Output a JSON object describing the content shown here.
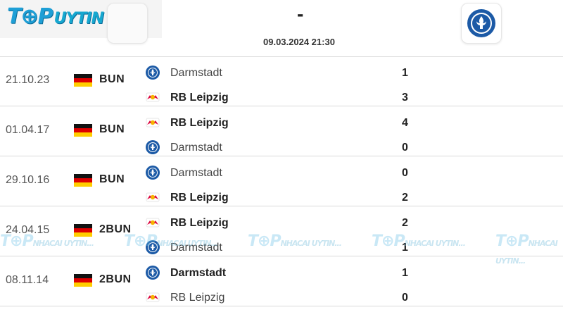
{
  "brand": {
    "prefix": "T⊕P",
    "suffix": "UYTIN"
  },
  "header": {
    "score": "-",
    "datetime": "09.03.2024 21:30"
  },
  "watermark": {
    "text": "T⊕P",
    "small": "NHACAI UYTIN..."
  },
  "matches": [
    {
      "date": "21.10.23",
      "competition": "BUN",
      "home": {
        "name": "Darmstadt",
        "goals": "1",
        "bold": false,
        "club": "darmstadt"
      },
      "away": {
        "name": "RB Leipzig",
        "goals": "3",
        "bold": true,
        "club": "leipzig"
      }
    },
    {
      "date": "01.04.17",
      "competition": "BUN",
      "home": {
        "name": "RB Leipzig",
        "goals": "4",
        "bold": true,
        "club": "leipzig"
      },
      "away": {
        "name": "Darmstadt",
        "goals": "0",
        "bold": false,
        "club": "darmstadt"
      }
    },
    {
      "date": "29.10.16",
      "competition": "BUN",
      "home": {
        "name": "Darmstadt",
        "goals": "0",
        "bold": false,
        "club": "darmstadt"
      },
      "away": {
        "name": "RB Leipzig",
        "goals": "2",
        "bold": true,
        "club": "leipzig"
      }
    },
    {
      "date": "24.04.15",
      "competition": "2BUN",
      "home": {
        "name": "RB Leipzig",
        "goals": "2",
        "bold": true,
        "club": "leipzig"
      },
      "away": {
        "name": "Darmstadt",
        "goals": "1",
        "bold": false,
        "club": "darmstadt"
      }
    },
    {
      "date": "08.11.14",
      "competition": "2BUN",
      "home": {
        "name": "Darmstadt",
        "goals": "1",
        "bold": true,
        "club": "darmstadt"
      },
      "away": {
        "name": "RB Leipzig",
        "goals": "0",
        "bold": false,
        "club": "leipzig"
      }
    }
  ],
  "colors": {
    "darmstadt": "#1c5aa6",
    "leipzig": "#dd0741",
    "rule": "#d9d9d9"
  },
  "icons": {
    "darmstadt": "darmstadt-crest-icon",
    "leipzig": "rb-leipzig-crest-icon",
    "flag": "germany-flag-icon"
  }
}
